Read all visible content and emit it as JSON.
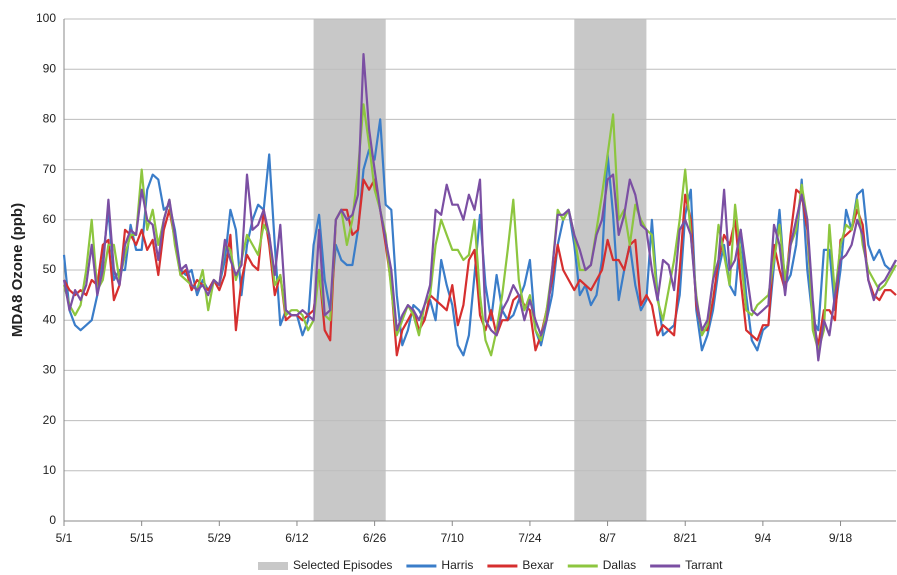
{
  "chart_data": {
    "type": "line",
    "ylabel": "MDA8 Ozone (ppb)",
    "categories": [
      "5/1",
      null,
      null,
      null,
      null,
      null,
      null,
      null,
      null,
      null,
      null,
      null,
      null,
      null,
      "5/15",
      null,
      null,
      null,
      null,
      null,
      null,
      null,
      null,
      null,
      null,
      null,
      null,
      null,
      "5/29",
      null,
      null,
      null,
      null,
      null,
      null,
      null,
      null,
      null,
      null,
      null,
      null,
      null,
      "6/12",
      null,
      null,
      null,
      null,
      null,
      null,
      null,
      null,
      null,
      null,
      null,
      null,
      null,
      "6/26",
      null,
      null,
      null,
      null,
      null,
      null,
      null,
      null,
      null,
      null,
      null,
      null,
      null,
      "7/10",
      null,
      null,
      null,
      null,
      null,
      null,
      null,
      null,
      null,
      null,
      null,
      null,
      null,
      "7/24",
      null,
      null,
      null,
      null,
      null,
      null,
      null,
      null,
      null,
      null,
      null,
      null,
      null,
      "8/7",
      null,
      null,
      null,
      null,
      null,
      null,
      null,
      null,
      null,
      null,
      null,
      null,
      null,
      "8/21",
      null,
      null,
      null,
      null,
      null,
      null,
      null,
      null,
      null,
      null,
      null,
      null,
      null,
      "9/4",
      null,
      null,
      null,
      null,
      null,
      null,
      null,
      null,
      null,
      null,
      null,
      null,
      null,
      "9/18",
      null,
      null,
      null,
      null,
      null,
      null,
      null,
      null,
      null,
      null
    ],
    "episodes": {
      "name": "Selected Episodes",
      "color": "#c8c8c8",
      "ranges": [
        [
          45,
          58
        ],
        [
          92,
          105
        ]
      ]
    },
    "series": [
      {
        "name": "Harris",
        "color": "#3a7dc9",
        "values": [
          53,
          42,
          39,
          38,
          39,
          40,
          45,
          52,
          62,
          48,
          50,
          50,
          59,
          54,
          54,
          66,
          69,
          68,
          62,
          63,
          58,
          50,
          49,
          50,
          45,
          48,
          46,
          48,
          47,
          52,
          62,
          58,
          45,
          55,
          60,
          63,
          62,
          73,
          55,
          39,
          42,
          41,
          41,
          37,
          40,
          55,
          61,
          48,
          42,
          55,
          52,
          51,
          51,
          58,
          70,
          74,
          72,
          80,
          63,
          62,
          45,
          35,
          38,
          43,
          42,
          40,
          44,
          40,
          52,
          47,
          43,
          35,
          33,
          37,
          49,
          61,
          47,
          40,
          49,
          42,
          40,
          41,
          44,
          47,
          52,
          38,
          35,
          40,
          45,
          55,
          60,
          62,
          55,
          45,
          47,
          43,
          45,
          52,
          73,
          61,
          44,
          50,
          55,
          47,
          42,
          44,
          60,
          45,
          37,
          38,
          39,
          45,
          61,
          66,
          42,
          34,
          37,
          42,
          50,
          55,
          47,
          45,
          58,
          45,
          36,
          34,
          38,
          39,
          51,
          62,
          47,
          49,
          55,
          68,
          50,
          40,
          38,
          54,
          54,
          42,
          50,
          62,
          58,
          65,
          66,
          55,
          52,
          54,
          51,
          50,
          52
        ]
      },
      {
        "name": "Bexar",
        "color": "#d62f2f",
        "values": [
          48,
          46,
          45,
          46,
          45,
          48,
          47,
          55,
          56,
          44,
          47,
          58,
          57,
          55,
          58,
          54,
          56,
          49,
          58,
          62,
          56,
          49,
          50,
          46,
          48,
          47,
          46,
          48,
          46,
          49,
          57,
          38,
          48,
          53,
          51,
          50,
          62,
          55,
          45,
          49,
          40,
          41,
          41,
          40,
          41,
          42,
          50,
          38,
          36,
          60,
          62,
          62,
          57,
          58,
          68,
          66,
          68,
          62,
          55,
          47,
          33,
          38,
          40,
          42,
          38,
          40,
          45,
          44,
          43,
          42,
          47,
          39,
          43,
          52,
          54,
          41,
          38,
          42,
          37,
          40,
          40,
          44,
          45,
          43,
          42,
          34,
          37,
          42,
          48,
          55,
          50,
          48,
          46,
          48,
          47,
          46,
          48,
          50,
          56,
          52,
          52,
          50,
          55,
          56,
          43,
          45,
          43,
          37,
          39,
          38,
          37,
          50,
          65,
          60,
          43,
          38,
          38,
          44,
          52,
          57,
          55,
          60,
          48,
          38,
          37,
          36,
          39,
          39,
          55,
          50,
          46,
          57,
          66,
          65,
          58,
          40,
          35,
          42,
          42,
          40,
          56,
          57,
          58,
          62,
          59,
          48,
          45,
          44,
          46,
          46,
          45
        ]
      },
      {
        "name": "Dallas",
        "color": "#8dc63f",
        "values": [
          47,
          43,
          41,
          43,
          50,
          60,
          46,
          48,
          55,
          55,
          48,
          53,
          57,
          57,
          70,
          58,
          62,
          55,
          60,
          64,
          55,
          49,
          48,
          47,
          46,
          50,
          42,
          48,
          47,
          55,
          54,
          48,
          52,
          57,
          55,
          53,
          59,
          57,
          47,
          49,
          41,
          42,
          42,
          41,
          38,
          40,
          50,
          41,
          40,
          60,
          62,
          55,
          60,
          70,
          83,
          75,
          66,
          62,
          57,
          46,
          37,
          40,
          43,
          41,
          37,
          43,
          45,
          55,
          60,
          57,
          54,
          54,
          52,
          53,
          60,
          45,
          36,
          33,
          38,
          45,
          54,
          64,
          48,
          42,
          45,
          38,
          36,
          42,
          50,
          62,
          60,
          62,
          57,
          50,
          50,
          51,
          58,
          65,
          73,
          81,
          60,
          62,
          55,
          63,
          60,
          58,
          57,
          44,
          40,
          46,
          52,
          60,
          70,
          57,
          45,
          37,
          39,
          48,
          59,
          53,
          47,
          63,
          53,
          42,
          41,
          43,
          44,
          45,
          52,
          59,
          48,
          55,
          58,
          67,
          60,
          38,
          34,
          38,
          59,
          45,
          55,
          59,
          58,
          64,
          55,
          50,
          48,
          46,
          47,
          49,
          51
        ]
      },
      {
        "name": "Tarrant",
        "color": "#7b4fa3",
        "values": [
          48,
          42,
          46,
          44,
          47,
          55,
          45,
          50,
          64,
          50,
          47,
          55,
          58,
          57,
          66,
          60,
          59,
          52,
          60,
          64,
          57,
          50,
          51,
          47,
          46,
          47,
          45,
          48,
          47,
          56,
          52,
          49,
          51,
          69,
          58,
          59,
          62,
          57,
          49,
          59,
          42,
          41,
          41,
          42,
          41,
          40,
          58,
          41,
          42,
          60,
          62,
          60,
          61,
          65,
          93,
          78,
          70,
          62,
          56,
          50,
          38,
          41,
          43,
          42,
          40,
          43,
          47,
          62,
          61,
          67,
          63,
          63,
          60,
          65,
          62,
          68,
          40,
          38,
          37,
          42,
          44,
          47,
          45,
          40,
          44,
          40,
          37,
          40,
          50,
          61,
          61,
          62,
          57,
          54,
          50,
          51,
          57,
          60,
          68,
          69,
          57,
          61,
          68,
          65,
          59,
          58,
          50,
          44,
          52,
          51,
          46,
          58,
          60,
          57,
          44,
          38,
          40,
          48,
          52,
          66,
          50,
          52,
          58,
          50,
          42,
          41,
          42,
          43,
          59,
          55,
          45,
          55,
          60,
          65,
          60,
          44,
          32,
          40,
          37,
          45,
          52,
          53,
          55,
          60,
          57,
          48,
          44,
          47,
          48,
          50,
          52
        ]
      }
    ],
    "ylim": [
      0,
      100
    ],
    "yticks": [
      0,
      10,
      20,
      30,
      40,
      50,
      60,
      70,
      80,
      90,
      100
    ],
    "grid": true,
    "legend": "bottom"
  }
}
